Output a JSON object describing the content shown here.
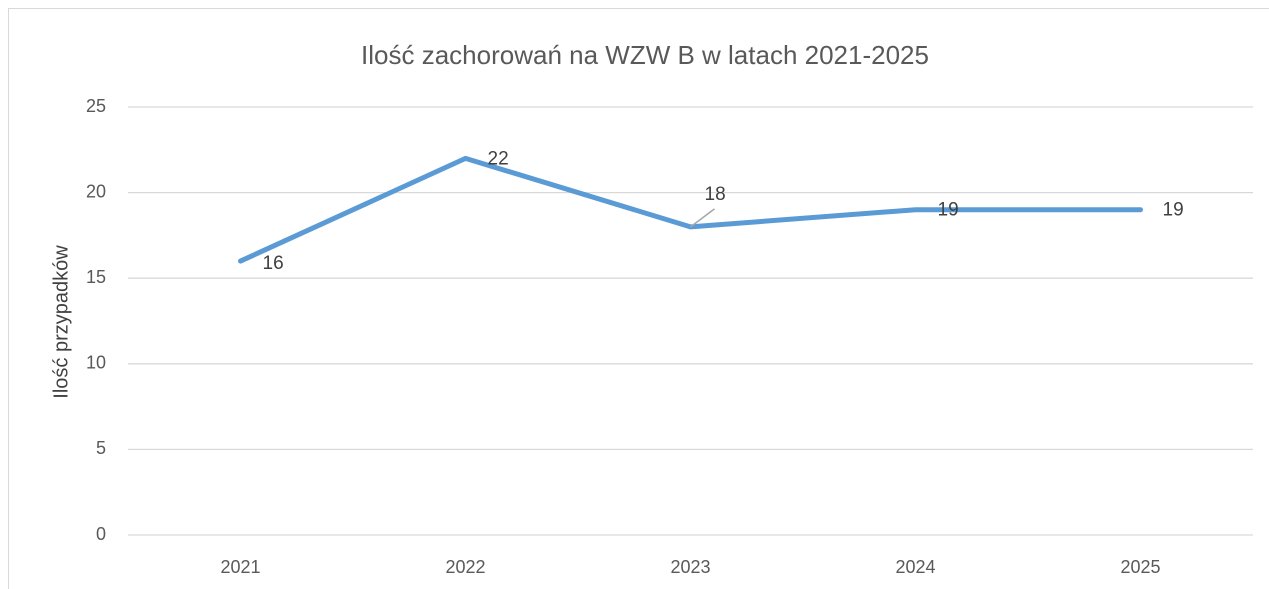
{
  "chart_data": {
    "type": "line",
    "title": "Ilość zachorowań na WZW B w latach 2021-2025",
    "y_label": "Ilość przypadków",
    "categories": [
      "2021",
      "2022",
      "2023",
      "2024",
      "2025"
    ],
    "values": [
      16,
      22,
      18,
      19,
      19
    ],
    "color": "#5b9bd5",
    "ylim": [
      0,
      25
    ],
    "yticks": [
      0,
      5,
      10,
      15,
      20,
      25
    ],
    "grid": true,
    "data_labels": true
  }
}
